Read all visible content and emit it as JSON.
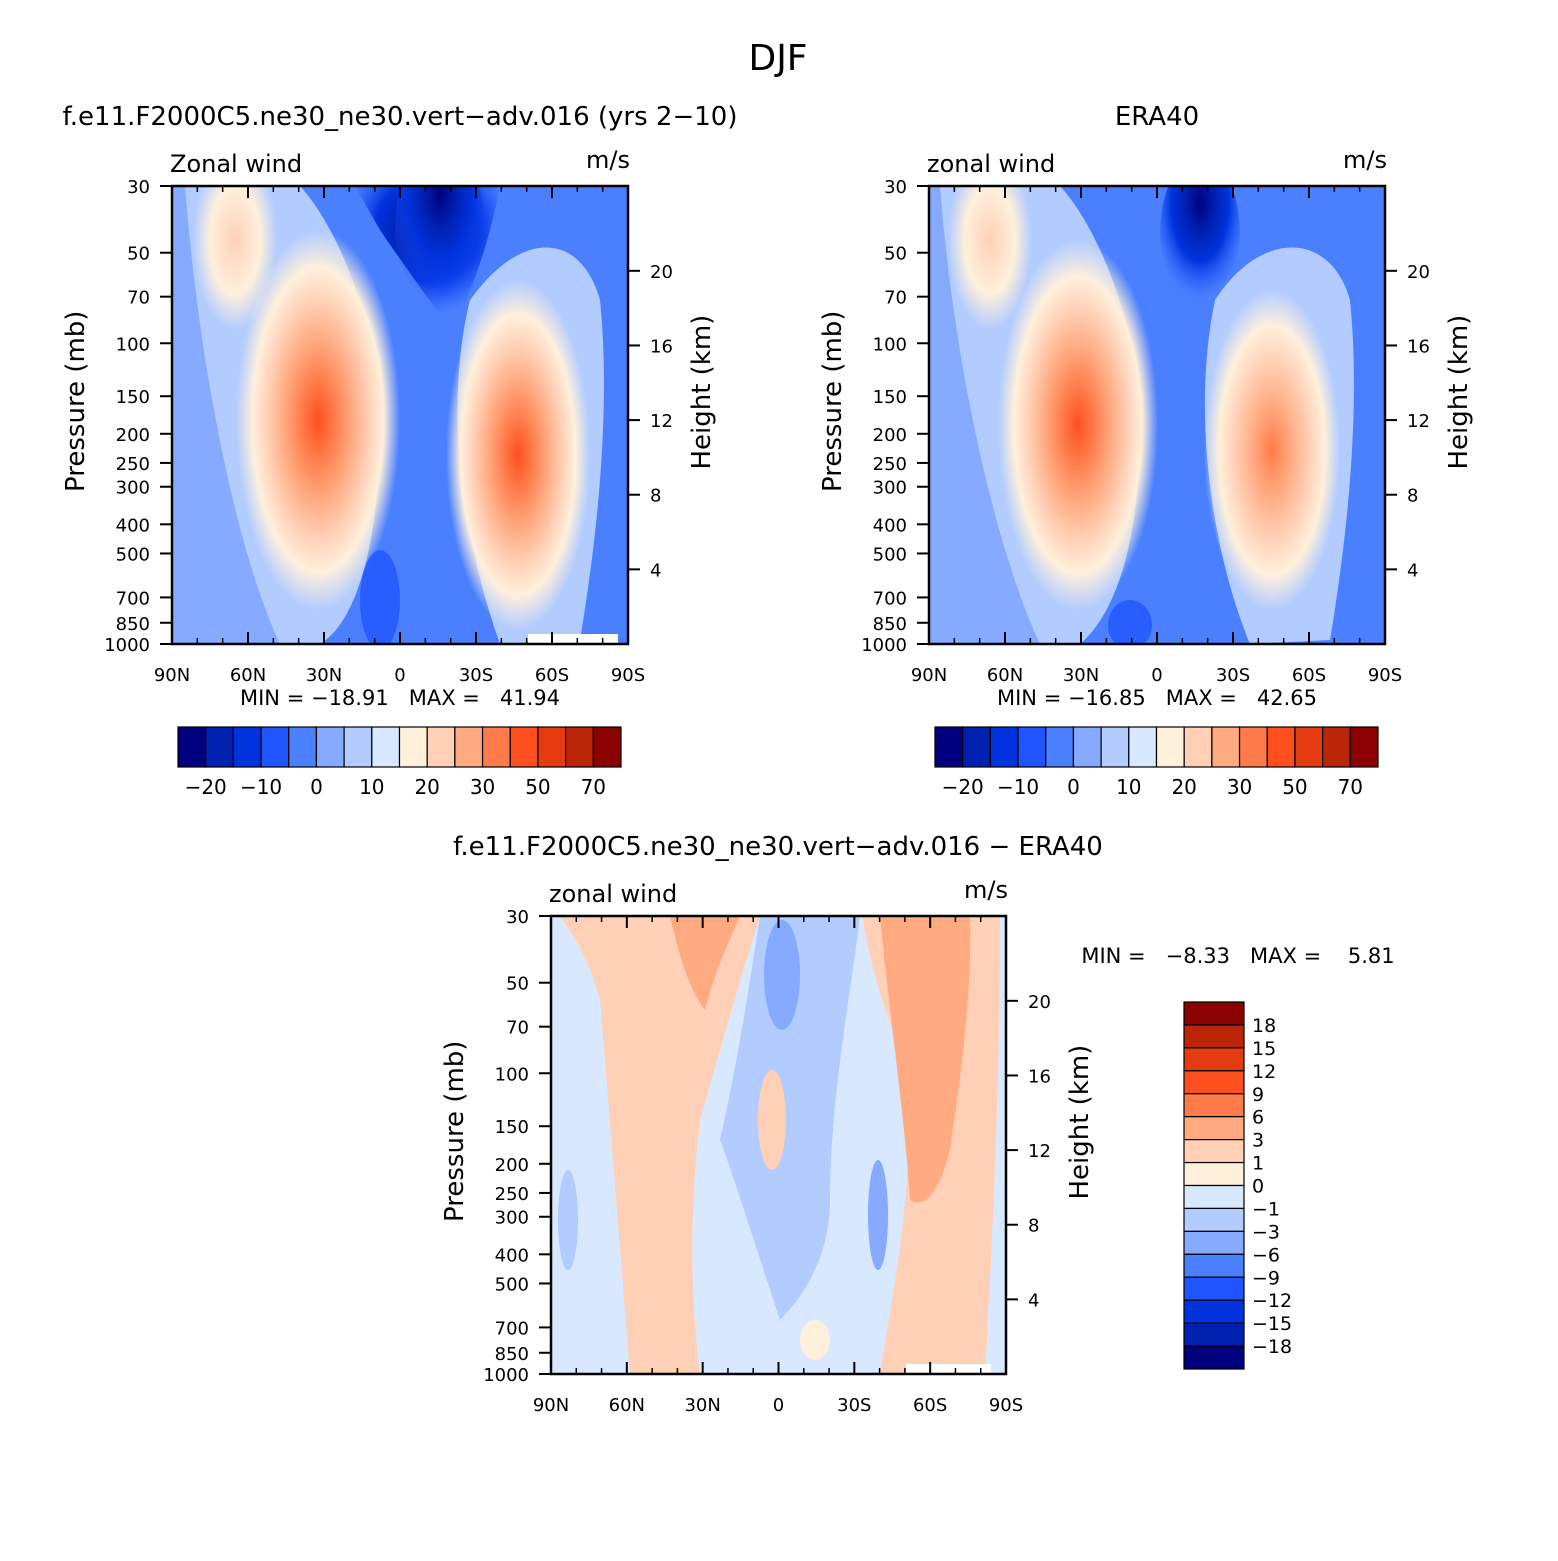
{
  "figure_title": "DJF",
  "panels": [
    {
      "title": "f.e11.F2000C5.ne30_ne30.vert−adv.016 (yrs 2−10)",
      "variable": "Zonal wind",
      "units": "m/s",
      "min_max": "MIN = −18.91   MAX =   41.94"
    },
    {
      "title": "ERA40",
      "variable": "zonal wind",
      "units": "m/s",
      "min_max": "MIN = −16.85   MAX =   42.65"
    },
    {
      "title": "f.e11.F2000C5.ne30_ne30.vert−adv.016 − ERA40",
      "variable": "zonal wind",
      "units": "m/s",
      "min_max": "MIN =   −8.33   MAX =    5.81"
    }
  ],
  "axis_labels": {
    "left": "Pressure (mb)",
    "right": "Height (km)"
  },
  "pressure_ticks": [
    "30",
    "50",
    "70",
    "100",
    "150",
    "200",
    "250",
    "300",
    "400",
    "500",
    "700",
    "850",
    "1000"
  ],
  "height_ticks": [
    "20",
    "16",
    "12",
    "8",
    "4"
  ],
  "lat_ticks": [
    "90N",
    "60N",
    "30N",
    "0",
    "30S",
    "60S",
    "90S"
  ],
  "colorbar_main": {
    "labels": [
      "−20",
      "−10",
      "0",
      "10",
      "20",
      "30",
      "50",
      "70"
    ],
    "colors": [
      "#00007f",
      "#0020b0",
      "#0033dd",
      "#1f55ff",
      "#4a80ff",
      "#86aaff",
      "#b3ccff",
      "#d8e9ff",
      "#fff0dc",
      "#ffd0b6",
      "#ffaa80",
      "#ff7b4a",
      "#ff4f1f",
      "#e43c10",
      "#bb2508",
      "#8b0000"
    ]
  },
  "colorbar_diff": {
    "labels": [
      "18",
      "15",
      "12",
      "9",
      "6",
      "3",
      "1",
      "0",
      "−1",
      "−3",
      "−6",
      "−9",
      "−12",
      "−15",
      "−18"
    ],
    "colors": [
      "#8b0000",
      "#bb2508",
      "#e43c10",
      "#ff4f1f",
      "#ff7b4a",
      "#ffaa80",
      "#ffd0b6",
      "#fff0dc",
      "#d8e9ff",
      "#b3ccff",
      "#86aaff",
      "#4a80ff",
      "#1f55ff",
      "#0033dd",
      "#0020b0",
      "#00007f"
    ]
  },
  "chart_data": [
    {
      "type": "heatmap",
      "title": "f.e11.F2000C5.ne30_ne30.vert−adv.016 (yrs 2−10)",
      "xlabel": "",
      "ylabel": "Pressure (mb)",
      "x": [
        "90N",
        "60N",
        "30N",
        "0",
        "30S",
        "60S",
        "90S"
      ],
      "y_log_pressure_mb": [
        30,
        1000
      ],
      "min": -18.91,
      "max": 41.94,
      "jets": [
        {
          "lat": 31,
          "pressure_mb": 180,
          "value": 41.94
        },
        {
          "lat": -50,
          "pressure_mb": 210,
          "value": 38
        }
      ],
      "minimum": {
        "lat": -15,
        "pressure_mb": 35,
        "value": -18.91
      }
    },
    {
      "type": "heatmap",
      "title": "ERA40",
      "xlabel": "",
      "ylabel": "Pressure (mb)",
      "x": [
        "90N",
        "60N",
        "30N",
        "0",
        "30S",
        "60S",
        "90S"
      ],
      "y_log_pressure_mb": [
        30,
        1000
      ],
      "min": -16.85,
      "max": 42.65,
      "jets": [
        {
          "lat": 31,
          "pressure_mb": 190,
          "value": 42.65
        },
        {
          "lat": -46,
          "pressure_mb": 230,
          "value": 35
        }
      ],
      "minimum": {
        "lat": -12,
        "pressure_mb": 35,
        "value": -16.85
      }
    },
    {
      "type": "heatmap",
      "title": "f.e11.F2000C5.ne30_ne30.vert−adv.016 − ERA40",
      "xlabel": "",
      "ylabel": "Pressure (mb)",
      "x": [
        "90N",
        "60N",
        "30N",
        "0",
        "30S",
        "60S",
        "90S"
      ],
      "y_log_pressure_mb": [
        30,
        1000
      ],
      "min": -8.33,
      "max": 5.81
    }
  ]
}
